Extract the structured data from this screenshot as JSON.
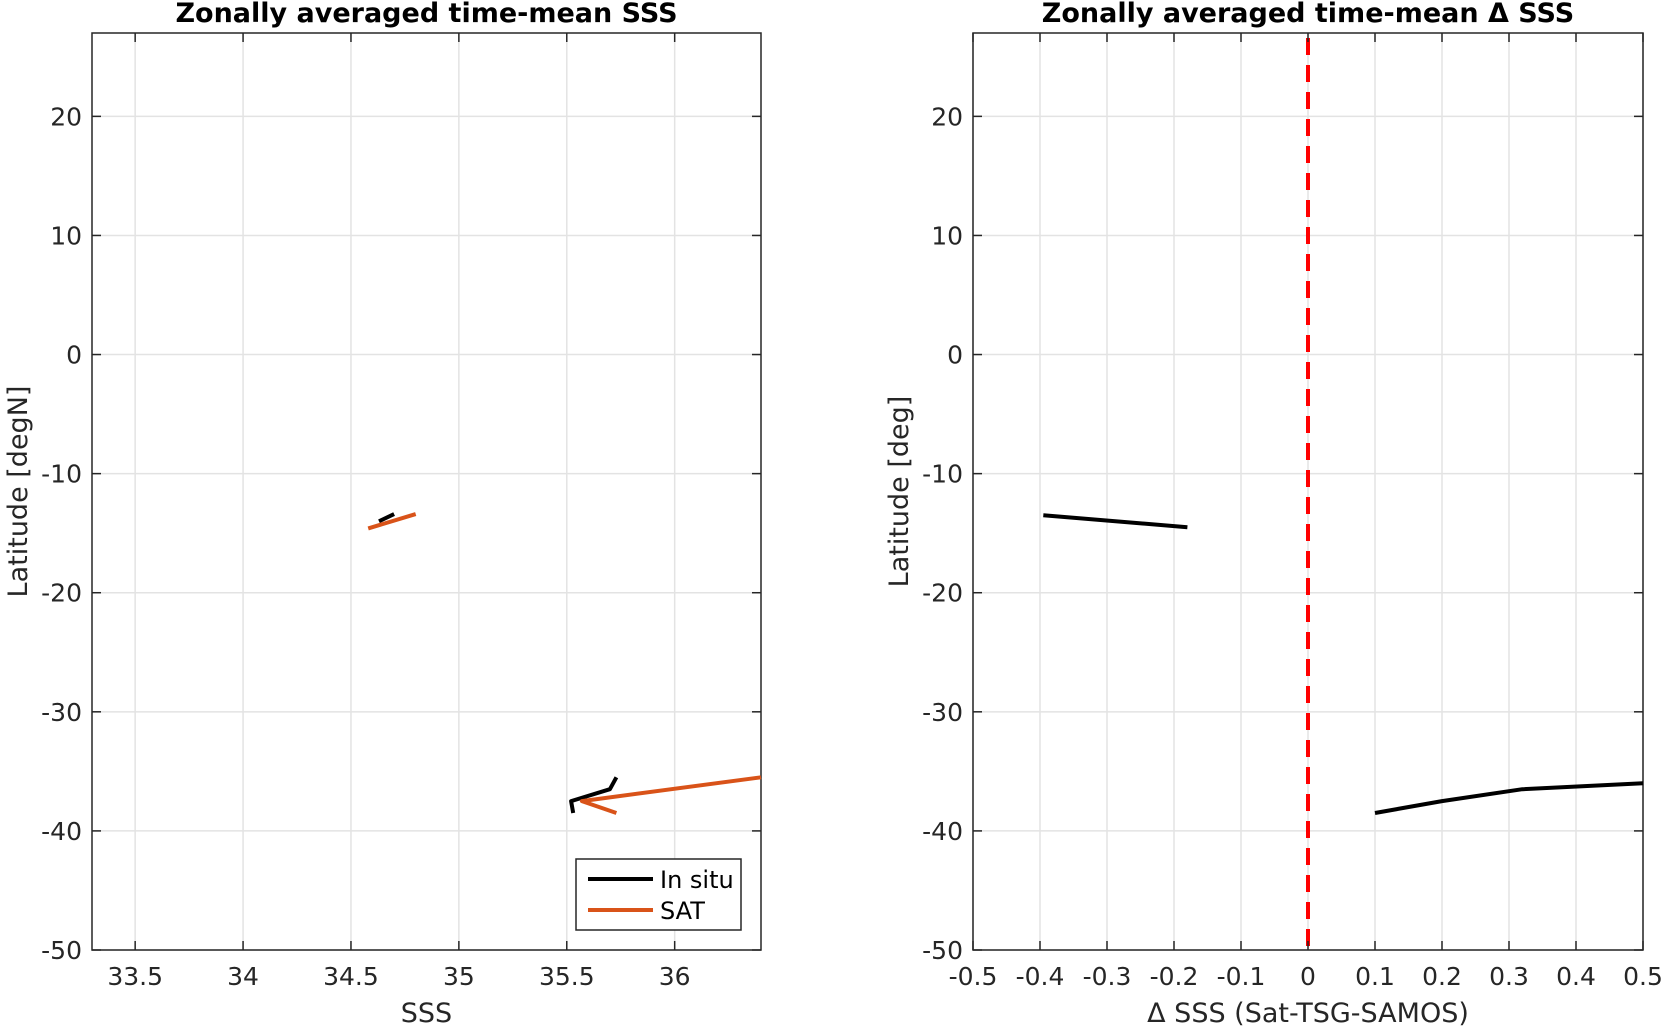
{
  "chart_data": [
    {
      "type": "line",
      "title": "Zonally averaged time-mean SSS",
      "xlabel": "SSS",
      "ylabel": "Latitude [degN]",
      "xlim": [
        33.3,
        36.4
      ],
      "ylim": [
        -50,
        27
      ],
      "xticks": [
        33.5,
        34,
        34.5,
        35,
        35.5,
        36
      ],
      "xtick_labels": [
        "33.5",
        "34",
        "34.5",
        "35",
        "35.5",
        "36"
      ],
      "yticks": [
        -50,
        -40,
        -30,
        -20,
        -10,
        0,
        10,
        20
      ],
      "ytick_labels": [
        "-50",
        "-40",
        "-30",
        "-20",
        "-10",
        "0",
        "10",
        "20"
      ],
      "grid": true,
      "legend_position": "bottom-right",
      "series": [
        {
          "name": "In situ",
          "color": "#000000",
          "segments": [
            [
              [
                34.7,
                -13.4
              ],
              [
                34.63,
                -14.0
              ]
            ],
            [
              [
                35.73,
                -35.5
              ],
              [
                35.7,
                -36.5
              ],
              [
                35.52,
                -37.5
              ],
              [
                35.53,
                -38.5
              ]
            ]
          ]
        },
        {
          "name": "SAT",
          "color": "#D95319",
          "segments": [
            [
              [
                34.8,
                -13.4
              ],
              [
                34.58,
                -14.6
              ]
            ],
            [
              [
                36.4,
                -35.5
              ],
              [
                35.57,
                -37.5
              ],
              [
                35.73,
                -38.5
              ]
            ]
          ]
        }
      ]
    },
    {
      "type": "line",
      "title": "Zonally averaged time-mean Δ SSS",
      "xlabel": "Δ SSS (Sat-TSG-SAMOS)",
      "ylabel": "Latitude [deg]",
      "xlim": [
        -0.5,
        0.5
      ],
      "ylim": [
        -50,
        27
      ],
      "xticks": [
        -0.5,
        -0.4,
        -0.3,
        -0.2,
        -0.1,
        0,
        0.1,
        0.2,
        0.3,
        0.4,
        0.5
      ],
      "xtick_labels": [
        "-0.5",
        "-0.4",
        "-0.3",
        "-0.2",
        "-0.1",
        "0",
        "0.1",
        "0.2",
        "0.3",
        "0.4",
        "0.5"
      ],
      "yticks": [
        -50,
        -40,
        -30,
        -20,
        -10,
        0,
        10,
        20
      ],
      "ytick_labels": [
        "-50",
        "-40",
        "-30",
        "-20",
        "-10",
        "0",
        "10",
        "20"
      ],
      "grid": true,
      "zero_line": {
        "x": 0,
        "color": "#FF0000",
        "style": "dashed"
      },
      "series": [
        {
          "color": "#000000",
          "segments": [
            [
              [
                -0.395,
                -13.5
              ],
              [
                -0.18,
                -14.5
              ]
            ],
            [
              [
                0.1,
                -38.5
              ],
              [
                0.2,
                -37.5
              ],
              [
                0.32,
                -36.5
              ],
              [
                0.5,
                -36.0
              ]
            ]
          ]
        }
      ]
    }
  ]
}
